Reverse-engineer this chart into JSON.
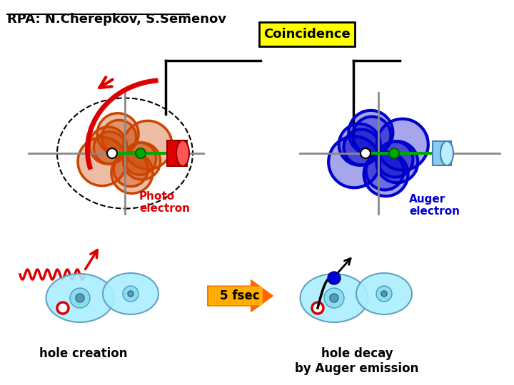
{
  "title": "RPA: N.Cherepkov, S.Semenov",
  "coincidence_label": "Coincidence",
  "photo_electron_label": "Photo\nelectron",
  "auger_electron_label": "Auger\nelectron",
  "fsec_label": "5 fsec",
  "hole_creation_label": "hole creation",
  "hole_decay_label": "hole decay\nby Auger emission",
  "bg_color": "#ffffff",
  "orange_color": "#cc4400",
  "red_color": "#dd0000",
  "blue_color": "#0000cc",
  "green_color": "#00aa00",
  "cyan_color": "#aaeeff",
  "gray_color": "#888888",
  "yellow_color": "#ffff00",
  "arrow_orange": "#ff6600"
}
